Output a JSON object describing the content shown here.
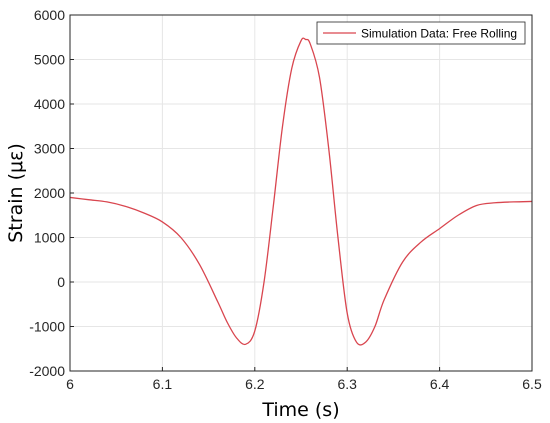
{
  "chart_data": {
    "type": "line",
    "title": "",
    "xlabel": "Time (s)",
    "ylabel": "Strain (με)",
    "xlim": [
      6.0,
      6.5
    ],
    "ylim": [
      -2000,
      6000
    ],
    "xticks": [
      "6",
      "6.1",
      "6.2",
      "6.3",
      "6.4",
      "6.5"
    ],
    "yticks": [
      "-2000",
      "-1000",
      "0",
      "1000",
      "2000",
      "3000",
      "4000",
      "5000",
      "6000"
    ],
    "grid": true,
    "legend_position": "top-right",
    "series": [
      {
        "name": "Simulation Data: Free Rolling",
        "color": "#d9464f",
        "x": [
          6.0,
          6.02,
          6.04,
          6.06,
          6.08,
          6.1,
          6.12,
          6.14,
          6.16,
          6.17,
          6.18,
          6.19,
          6.2,
          6.21,
          6.22,
          6.23,
          6.24,
          6.25,
          6.255,
          6.26,
          6.27,
          6.28,
          6.29,
          6.3,
          6.31,
          6.32,
          6.33,
          6.34,
          6.36,
          6.38,
          6.4,
          6.42,
          6.44,
          6.46,
          6.48,
          6.5
        ],
        "y": [
          1900,
          1850,
          1800,
          1700,
          1550,
          1350,
          1000,
          400,
          -450,
          -900,
          -1250,
          -1400,
          -1100,
          0,
          1700,
          3500,
          4800,
          5420,
          5450,
          5350,
          4600,
          3000,
          1000,
          -700,
          -1350,
          -1350,
          -1000,
          -400,
          450,
          900,
          1200,
          1500,
          1720,
          1780,
          1800,
          1810
        ]
      }
    ]
  }
}
